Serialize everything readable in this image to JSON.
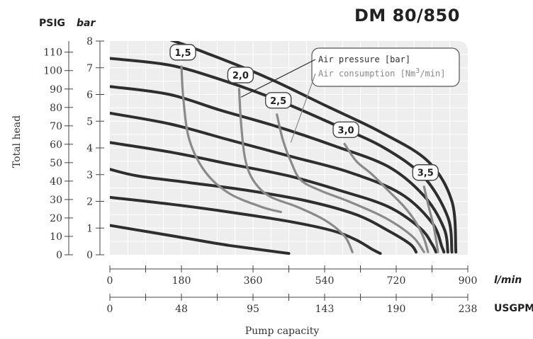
{
  "chart_data": {
    "type": "line",
    "title": "DM 80/850",
    "xlabel": "Pump capacity",
    "ylabel": "Total head",
    "x_unit_primary": "l/min",
    "x_unit_secondary": "USGPM",
    "y_unit_primary": "PSIG",
    "y_unit_secondary": "bar",
    "x_ticks_primary": [
      "0",
      "180",
      "360",
      "540",
      "720",
      "900"
    ],
    "x_ticks_secondary": [
      "0",
      "48",
      "95",
      "143",
      "190",
      "238"
    ],
    "y_ticks_bar": [
      "0",
      "1",
      "2",
      "3",
      "4",
      "5",
      "6",
      "7",
      "8"
    ],
    "y_ticks_psig": [
      "0",
      "10",
      "20",
      "30",
      "40",
      "50",
      "60",
      "70",
      "80",
      "90",
      "100",
      "110"
    ],
    "xlim": [
      0,
      900
    ],
    "ylim": [
      0,
      8
    ],
    "grid": true,
    "legend": {
      "placement": "top-right",
      "entries": [
        {
          "label_pre": "Air pressure [bar]",
          "label_sup": "",
          "label_post": "",
          "color": "#2e2e2e"
        },
        {
          "label_pre": "Air consumption [Nm",
          "label_sup": "3",
          "label_post": "/min]",
          "color": "#8a8a8a"
        }
      ]
    },
    "air_pressure_series": [
      {
        "points": [
          [
            0,
            1.1
          ],
          [
            100,
            0.85
          ],
          [
            200,
            0.6
          ],
          [
            300,
            0.35
          ],
          [
            450,
            0.05
          ]
        ]
      },
      {
        "points": [
          [
            0,
            2.15
          ],
          [
            150,
            1.9
          ],
          [
            300,
            1.6
          ],
          [
            450,
            1.25
          ],
          [
            560,
            0.9
          ],
          [
            620,
            0.55
          ],
          [
            660,
            0.2
          ],
          [
            680,
            0.05
          ]
        ]
      },
      {
        "points": [
          [
            0,
            3.2
          ],
          [
            70,
            2.95
          ],
          [
            200,
            2.7
          ],
          [
            350,
            2.4
          ],
          [
            500,
            2.0
          ],
          [
            620,
            1.5
          ],
          [
            700,
            0.9
          ],
          [
            755,
            0.4
          ],
          [
            770,
            0.1
          ]
        ]
      },
      {
        "points": [
          [
            0,
            4.2
          ],
          [
            150,
            3.85
          ],
          [
            300,
            3.4
          ],
          [
            450,
            2.95
          ],
          [
            580,
            2.4
          ],
          [
            700,
            1.8
          ],
          [
            780,
            1.0
          ],
          [
            810,
            0.4
          ],
          [
            820,
            0.1
          ]
        ]
      },
      {
        "points": [
          [
            0,
            5.3
          ],
          [
            150,
            4.9
          ],
          [
            300,
            4.3
          ],
          [
            450,
            3.7
          ],
          [
            600,
            3.1
          ],
          [
            730,
            2.3
          ],
          [
            810,
            1.2
          ],
          [
            835,
            0.3
          ],
          [
            840,
            0.1
          ]
        ]
      },
      {
        "points": [
          [
            0,
            6.3
          ],
          [
            150,
            6.0
          ],
          [
            280,
            5.4
          ],
          [
            420,
            4.8
          ],
          [
            560,
            4.1
          ],
          [
            700,
            3.3
          ],
          [
            790,
            2.2
          ],
          [
            840,
            1.0
          ],
          [
            850,
            0.1
          ]
        ]
      },
      {
        "points": [
          [
            0,
            7.35
          ],
          [
            150,
            7.1
          ],
          [
            280,
            6.55
          ],
          [
            420,
            5.8
          ],
          [
            560,
            4.9
          ],
          [
            690,
            4.0
          ],
          [
            790,
            2.9
          ],
          [
            850,
            1.4
          ],
          [
            860,
            0.1
          ]
        ]
      },
      {
        "points": [
          [
            0,
            8.55
          ],
          [
            120,
            8.2
          ],
          [
            260,
            7.45
          ],
          [
            400,
            6.6
          ],
          [
            540,
            5.6
          ],
          [
            680,
            4.6
          ],
          [
            800,
            3.5
          ],
          [
            860,
            2.0
          ],
          [
            870,
            0.1
          ]
        ]
      }
    ],
    "air_consumption_series": [
      {
        "label": "1,5",
        "points": [
          [
            180,
            7.05
          ],
          [
            185,
            5.8
          ],
          [
            200,
            4.3
          ],
          [
            240,
            3.1
          ],
          [
            300,
            2.3
          ],
          [
            380,
            1.8
          ],
          [
            430,
            1.6
          ]
        ]
      },
      {
        "label": "2,0",
        "points": [
          [
            325,
            6.2
          ],
          [
            330,
            4.9
          ],
          [
            340,
            3.6
          ],
          [
            360,
            2.8
          ],
          [
            400,
            2.2
          ],
          [
            470,
            1.8
          ],
          [
            540,
            1.3
          ],
          [
            590,
            0.7
          ],
          [
            610,
            0.1
          ]
        ]
      },
      {
        "label": "2,5",
        "points": [
          [
            420,
            5.25
          ],
          [
            435,
            4.3
          ],
          [
            455,
            3.5
          ],
          [
            480,
            2.8
          ],
          [
            530,
            2.4
          ],
          [
            600,
            2.0
          ],
          [
            690,
            1.4
          ],
          [
            760,
            0.7
          ],
          [
            790,
            0.1
          ]
        ]
      },
      {
        "label": "3,0",
        "points": [
          [
            590,
            4.15
          ],
          [
            620,
            3.5
          ],
          [
            660,
            3.0
          ],
          [
            700,
            2.4
          ],
          [
            740,
            1.8
          ],
          [
            770,
            1.2
          ],
          [
            790,
            0.6
          ],
          [
            800,
            0.1
          ]
        ]
      },
      {
        "label": "3,5",
        "points": [
          [
            790,
            2.55
          ],
          [
            800,
            1.9
          ],
          [
            812,
            1.2
          ],
          [
            820,
            0.6
          ],
          [
            825,
            0.1
          ]
        ]
      }
    ]
  }
}
